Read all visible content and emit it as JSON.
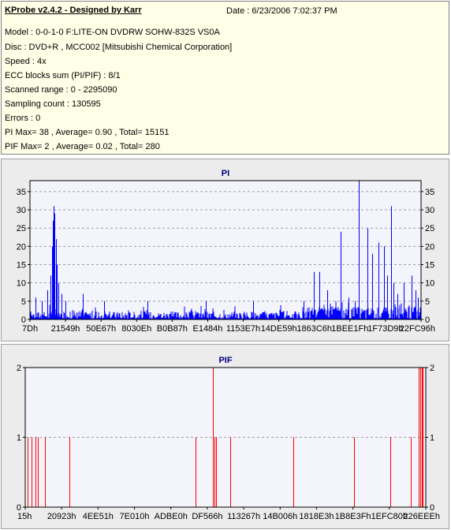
{
  "header": {
    "app_title": "KProbe v2.4.2 - Designed by Karr",
    "date": "Date : 6/23/2006 7:02:37 PM"
  },
  "info_lines": [
    "Model : 0-0-1-0 F:LITE-ON DVDRW SOHW-832S  VS0A",
    "Disc : DVD+R , MCC002 [Mitsubishi Chemical Corporation]",
    "Speed : 4x",
    "ECC blocks sum (PI/PIF) : 8/1",
    "Scanned range : 0 - 2295090",
    "Sampling count : 130595",
    "Errors : 0",
    "PI Max= 38 , Average= 0.90 , Total= 15151",
    "PIF Max= 2 , Average= 0.02 , Total= 280"
  ],
  "chart_data": [
    {
      "type": "bar",
      "title": "PI",
      "ylim": [
        0,
        38
      ],
      "yticks": [
        0,
        5,
        10,
        15,
        20,
        25,
        30,
        35
      ],
      "xlim": [
        0,
        100
      ],
      "xtick_labels": [
        "7Dh",
        "21549h",
        "50E67h",
        "8030Eh",
        "B0B87h",
        "E1484h",
        "1153E7h",
        "14DE59h",
        "1863C6h",
        "1BEE1Fh",
        "1F73D9h",
        "22FC96h"
      ],
      "grid": true,
      "color": "#0000ff",
      "baseline_max": 5,
      "spikes": [
        {
          "x": 1.5,
          "y": 6
        },
        {
          "x": 3.0,
          "y": 5
        },
        {
          "x": 4.5,
          "y": 8
        },
        {
          "x": 5.2,
          "y": 12
        },
        {
          "x": 5.6,
          "y": 20
        },
        {
          "x": 5.9,
          "y": 27
        },
        {
          "x": 6.1,
          "y": 31
        },
        {
          "x": 6.3,
          "y": 29
        },
        {
          "x": 6.6,
          "y": 22
        },
        {
          "x": 6.9,
          "y": 15
        },
        {
          "x": 7.3,
          "y": 10
        },
        {
          "x": 8.0,
          "y": 7
        },
        {
          "x": 9.0,
          "y": 5
        },
        {
          "x": 13.5,
          "y": 7
        },
        {
          "x": 19.0,
          "y": 5
        },
        {
          "x": 30.0,
          "y": 5
        },
        {
          "x": 45.0,
          "y": 5
        },
        {
          "x": 57.0,
          "y": 5
        },
        {
          "x": 70.0,
          "y": 5
        },
        {
          "x": 72.5,
          "y": 13
        },
        {
          "x": 74.0,
          "y": 13
        },
        {
          "x": 76.0,
          "y": 8
        },
        {
          "x": 79.5,
          "y": 24
        },
        {
          "x": 81.5,
          "y": 6
        },
        {
          "x": 83.0,
          "y": 5
        },
        {
          "x": 84.0,
          "y": 38
        },
        {
          "x": 86.2,
          "y": 25
        },
        {
          "x": 87.5,
          "y": 18
        },
        {
          "x": 89.2,
          "y": 21
        },
        {
          "x": 90.5,
          "y": 20
        },
        {
          "x": 91.3,
          "y": 12
        },
        {
          "x": 92.3,
          "y": 31
        },
        {
          "x": 93.0,
          "y": 10
        },
        {
          "x": 94.0,
          "y": 7
        },
        {
          "x": 95.5,
          "y": 10
        },
        {
          "x": 97.5,
          "y": 12
        },
        {
          "x": 98.5,
          "y": 8
        },
        {
          "x": 99.2,
          "y": 6
        }
      ]
    },
    {
      "type": "bar",
      "title": "PIF",
      "ylim": [
        0,
        2
      ],
      "yticks": [
        0,
        1,
        2
      ],
      "xlim": [
        0,
        100
      ],
      "xtick_labels": [
        "15h",
        "20923h",
        "4EE51h",
        "7E010h",
        "ADBE0h",
        "DF566h",
        "113267h",
        "14B006h",
        "1818E3h",
        "1B8E3Fh",
        "1EFC80h",
        "226EEEh"
      ],
      "grid": true,
      "color": "#ff0000",
      "spikes": [
        {
          "x": 0.6,
          "y": 1
        },
        {
          "x": 1.5,
          "y": 1
        },
        {
          "x": 2.5,
          "y": 1
        },
        {
          "x": 3.2,
          "y": 1
        },
        {
          "x": 5.0,
          "y": 1
        },
        {
          "x": 11.0,
          "y": 1
        },
        {
          "x": 42.5,
          "y": 1
        },
        {
          "x": 46.8,
          "y": 2
        },
        {
          "x": 47.2,
          "y": 1
        },
        {
          "x": 47.6,
          "y": 1
        },
        {
          "x": 51.2,
          "y": 1
        },
        {
          "x": 67.0,
          "y": 1
        },
        {
          "x": 82.0,
          "y": 1
        },
        {
          "x": 91.2,
          "y": 1
        },
        {
          "x": 96.3,
          "y": 1
        },
        {
          "x": 98.2,
          "y": 2
        },
        {
          "x": 98.6,
          "y": 2
        },
        {
          "x": 99.0,
          "y": 2
        },
        {
          "x": 99.3,
          "y": 2
        }
      ]
    }
  ]
}
